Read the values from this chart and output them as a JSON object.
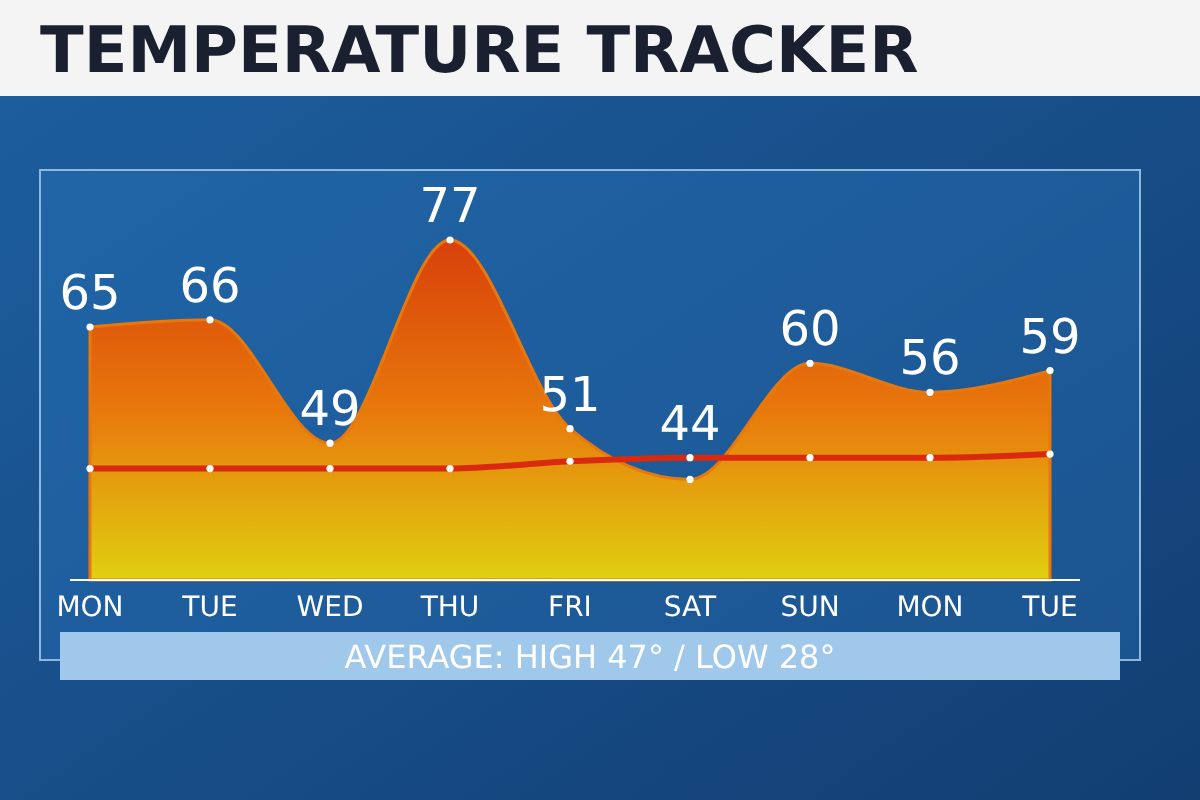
{
  "chart_data": {
    "type": "area",
    "title": "TEMPERATURE TRACKER",
    "categories": [
      "MON",
      "TUE",
      "WED",
      "THU",
      "FRI",
      "SAT",
      "SUN",
      "MON",
      "TUE"
    ],
    "series": [
      {
        "color": "#e8780c",
        "values": [
          65,
          66,
          49,
          77,
          51,
          44,
          60,
          56,
          59
        ],
        "value_labels": [
          "65",
          "66",
          "49",
          "77",
          "51",
          "44",
          "60",
          "56",
          "59"
        ]
      },
      {
        "type": "line",
        "color": "#d92a10",
        "values": [
          45.5,
          45.5,
          45.5,
          45.5,
          46.5,
          47,
          47,
          47,
          47.5
        ]
      }
    ],
    "marker": "circle",
    "annotations": [
      "AVERAGE: HIGH 47° / LOW 28°"
    ]
  }
}
